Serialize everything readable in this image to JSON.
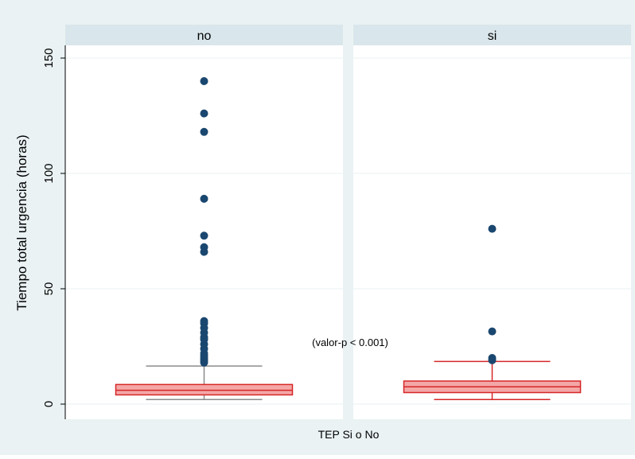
{
  "chart_data": {
    "type": "box",
    "title": "",
    "xlabel": "TEP Si o No",
    "ylabel": "Tiempo total urgencia (horas)",
    "ylim": [
      0,
      150
    ],
    "yticks": [
      0,
      50,
      100,
      150
    ],
    "grid": true,
    "annotation": "(valor-p < 0.001)",
    "panels": [
      {
        "name": "no",
        "box": {
          "whisker_low": 2,
          "q1": 4,
          "median": 6,
          "q3": 8.5,
          "whisker_high": 16.5
        },
        "outliers": [
          18,
          19,
          20,
          21,
          22,
          24,
          26,
          28,
          29,
          31,
          33,
          35,
          36,
          66,
          68,
          73,
          89,
          118,
          126,
          140
        ]
      },
      {
        "name": "si",
        "box": {
          "whisker_low": 2,
          "q1": 5,
          "median": 7.5,
          "q3": 10,
          "whisker_high": 18.5
        },
        "outliers": [
          19,
          20,
          31.5,
          76
        ]
      }
    ],
    "colors": {
      "background": "#eaf2f3",
      "plot": "#ffffff",
      "strip": "#d9e6eb",
      "box_fill": "#f4a7a7",
      "box_edge": "#d62728",
      "whisker_no": "#8c8c8c",
      "whisker_si": "#d62728",
      "outlier": "#1a476f",
      "grid": "#eaf2f3",
      "text": "#000000"
    }
  }
}
